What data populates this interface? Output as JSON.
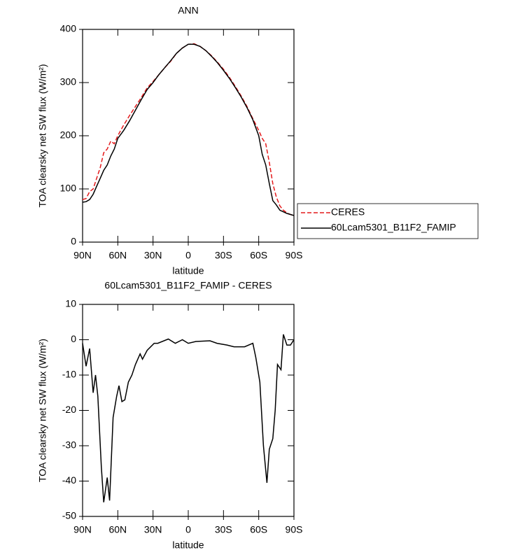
{
  "chart_data": [
    {
      "type": "line",
      "title": "ANN",
      "xlabel": "latitude",
      "ylabel": "TOA clearsky net SW flux (W/m²)",
      "x": [
        90,
        87,
        84,
        81,
        78,
        75,
        72,
        69,
        66,
        63,
        60,
        55,
        50,
        45,
        40,
        35,
        30,
        25,
        20,
        15,
        10,
        5,
        0,
        -5,
        -10,
        -15,
        -20,
        -25,
        -30,
        -35,
        -40,
        -45,
        -50,
        -55,
        -60,
        -63,
        -66,
        -69,
        -72,
        -75,
        -78,
        -81,
        -84,
        -87,
        -90
      ],
      "series": [
        {
          "name": "CERES",
          "color": "#e41a1c",
          "style": "dashed",
          "values": [
            80,
            82,
            95,
            100,
            120,
            140,
            168,
            175,
            190,
            185,
            200,
            220,
            238,
            255,
            272,
            290,
            302,
            315,
            328,
            340,
            355,
            365,
            372,
            373,
            368,
            360,
            350,
            338,
            325,
            310,
            293,
            275,
            255,
            232,
            210,
            195,
            185,
            150,
            110,
            85,
            68,
            60,
            55,
            52,
            50
          ]
        },
        {
          "name": "60Lcam5301_B11F2_FAMIP",
          "color": "#000000",
          "style": "solid",
          "values": [
            75,
            76,
            80,
            90,
            105,
            120,
            135,
            145,
            162,
            175,
            195,
            210,
            228,
            248,
            268,
            287,
            300,
            315,
            328,
            341,
            355,
            365,
            372,
            372,
            368,
            360,
            349,
            337,
            323,
            308,
            291,
            273,
            253,
            230,
            200,
            165,
            145,
            110,
            78,
            70,
            60,
            57,
            54,
            52,
            50
          ]
        }
      ],
      "xlim": [
        90,
        -90
      ],
      "xticks": [
        {
          "value": 90,
          "label": "90N"
        },
        {
          "value": 60,
          "label": "60N"
        },
        {
          "value": 30,
          "label": "30N"
        },
        0,
        {
          "value": -30,
          "label": "30S"
        },
        {
          "value": -60,
          "label": "60S"
        },
        {
          "value": -90,
          "label": "90S"
        }
      ],
      "ylim": [
        0,
        400
      ],
      "yticks": [
        0,
        100,
        200,
        300,
        400
      ],
      "legend": "outside-right"
    },
    {
      "type": "line",
      "title": "60Lcam5301_B11F2_FAMIP - CERES",
      "xlabel": "latitude",
      "ylabel": "TOA clearsky net SW flux (W/m²)",
      "x": [
        90,
        87,
        84,
        81,
        79,
        77,
        74,
        72,
        69,
        67,
        64,
        61,
        59,
        56.5,
        54,
        51,
        48,
        45,
        41,
        39,
        35,
        29,
        26,
        17,
        11,
        5,
        0,
        -6.5,
        -18.5,
        -24.5,
        -33,
        -39,
        -48,
        -55,
        -57.5,
        -61,
        -64,
        -67,
        -69,
        -72,
        -74,
        -76,
        -79,
        -81,
        -84,
        -87,
        -90
      ],
      "series": [
        {
          "color": "#000000",
          "style": "solid",
          "values": [
            -1,
            -7.5,
            -2.5,
            -15,
            -10,
            -16,
            -36,
            -46,
            -39,
            -45.5,
            -22,
            -16,
            -13,
            -17.5,
            -17,
            -12,
            -10,
            -7,
            -4,
            -5.5,
            -3,
            -1,
            -1,
            0.2,
            -1,
            0,
            -1,
            -0.5,
            -0.3,
            -1,
            -1.5,
            -2,
            -2,
            -1,
            -5,
            -12,
            -30,
            -40.5,
            -31,
            -28,
            -20,
            -7,
            -8.5,
            1.5,
            -1.5,
            -1.5,
            0
          ]
        }
      ],
      "xlim": [
        90,
        -90
      ],
      "xticks": [
        {
          "value": 90,
          "label": "90N"
        },
        {
          "value": 60,
          "label": "60N"
        },
        {
          "value": 30,
          "label": "30N"
        },
        0,
        {
          "value": -30,
          "label": "30S"
        },
        {
          "value": -60,
          "label": "60S"
        },
        {
          "value": -90,
          "label": "90S"
        }
      ],
      "ylim": [
        -50,
        10
      ],
      "yticks": [
        -50,
        -40,
        -30,
        -20,
        -10,
        0,
        10
      ]
    }
  ]
}
